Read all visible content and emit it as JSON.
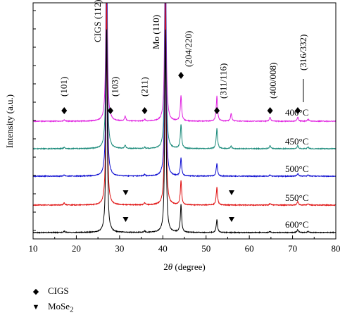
{
  "chart_data": {
    "type": "line",
    "xlabel_prefix": "2",
    "xlabel_theta": "θ",
    "xlabel_suffix": " (degree)",
    "ylabel": "Intensity (a.u.)",
    "xlim": [
      10,
      80
    ],
    "xticks": [
      "10",
      "20",
      "30",
      "40",
      "50",
      "60",
      "70",
      "80"
    ],
    "series": [
      {
        "name": "400°C",
        "color": "#e020e0",
        "offset": 4
      },
      {
        "name": "450°C",
        "color": "#1a8a7a",
        "offset": 3
      },
      {
        "name": "500°C",
        "color": "#0a0ad0",
        "offset": 2
      },
      {
        "name": "550°C",
        "color": "#e01010",
        "offset": 1
      },
      {
        "name": "600°C",
        "color": "#000000",
        "offset": 0
      }
    ],
    "peaks": [
      {
        "x": 17.2,
        "h": [
          0.06,
          0.08,
          0.05,
          0.05,
          0.06
        ]
      },
      {
        "x": 27.0,
        "h": [
          8.0,
          8.0,
          8.0,
          8.0,
          8.0
        ]
      },
      {
        "x": 28.0,
        "h": [
          0.02,
          0.02,
          0.02,
          0.02,
          0.03
        ]
      },
      {
        "x": 31.3,
        "h": [
          0.0,
          0.0,
          0.0,
          0.12,
          0.18
        ]
      },
      {
        "x": 35.8,
        "h": [
          0.05,
          0.08,
          0.06,
          0.05,
          0.07
        ]
      },
      {
        "x": 40.6,
        "h": [
          8.0,
          8.0,
          8.0,
          8.0,
          8.0
        ]
      },
      {
        "x": 44.2,
        "h": [
          1.1,
          0.95,
          0.7,
          0.95,
          1.0
        ]
      },
      {
        "x": 52.5,
        "h": [
          0.5,
          0.7,
          0.5,
          0.8,
          1.0
        ]
      },
      {
        "x": 55.8,
        "h": [
          0.0,
          0.0,
          0.0,
          0.1,
          0.3
        ]
      },
      {
        "x": 64.8,
        "h": [
          0.04,
          0.06,
          0.05,
          0.12,
          0.15
        ]
      },
      {
        "x": 71.2,
        "h": [
          0.12,
          0.14,
          0.1,
          0.12,
          0.16
        ]
      },
      {
        "x": 73.6,
        "h": [
          0.05,
          0.06,
          0.05,
          0.06,
          0.08
        ]
      }
    ],
    "peak_labels": [
      {
        "text": "(101)",
        "x": 17.2,
        "rotated": true
      },
      {
        "text": "CIGS (112)",
        "x": 25.0,
        "rotated": true
      },
      {
        "text": "(103)",
        "x": 29.0,
        "rotated": true
      },
      {
        "text": "(211)",
        "x": 35.8,
        "rotated": true
      },
      {
        "text": "Mo (110)",
        "x": 38.5,
        "rotated": true
      },
      {
        "text": "(204/220)",
        "x": 46.0,
        "rotated": true
      },
      {
        "text": "(311/116)",
        "x": 54.0,
        "rotated": true
      },
      {
        "text": "(400/008)",
        "x": 65.5,
        "rotated": true
      },
      {
        "text": "(316/332)",
        "x": 72.5,
        "rotated": true
      }
    ],
    "markers": [
      {
        "shape": "diamond",
        "x": 17.2,
        "level": 4
      },
      {
        "shape": "diamond",
        "x": 27.9,
        "level": 4
      },
      {
        "shape": "diamond",
        "x": 35.8,
        "level": 4
      },
      {
        "shape": "diamond",
        "x": 44.2,
        "level": 4.9
      },
      {
        "shape": "diamond",
        "x": 52.5,
        "level": 4
      },
      {
        "shape": "diamond",
        "x": 64.8,
        "level": 4
      },
      {
        "shape": "diamond",
        "x": 71.2,
        "level": 4
      },
      {
        "shape": "triangle",
        "x": 31.4,
        "level": 1
      },
      {
        "shape": "triangle",
        "x": 55.9,
        "level": 1
      },
      {
        "shape": "triangle",
        "x": 31.4,
        "level": 0
      },
      {
        "shape": "triangle",
        "x": 55.9,
        "level": 0
      }
    ],
    "legend": [
      {
        "shape": "diamond",
        "symbol": "◆",
        "label": "CIGS"
      },
      {
        "shape": "triangle",
        "symbol": "▼",
        "label_main": "MoSe",
        "label_sub": "2"
      }
    ]
  }
}
